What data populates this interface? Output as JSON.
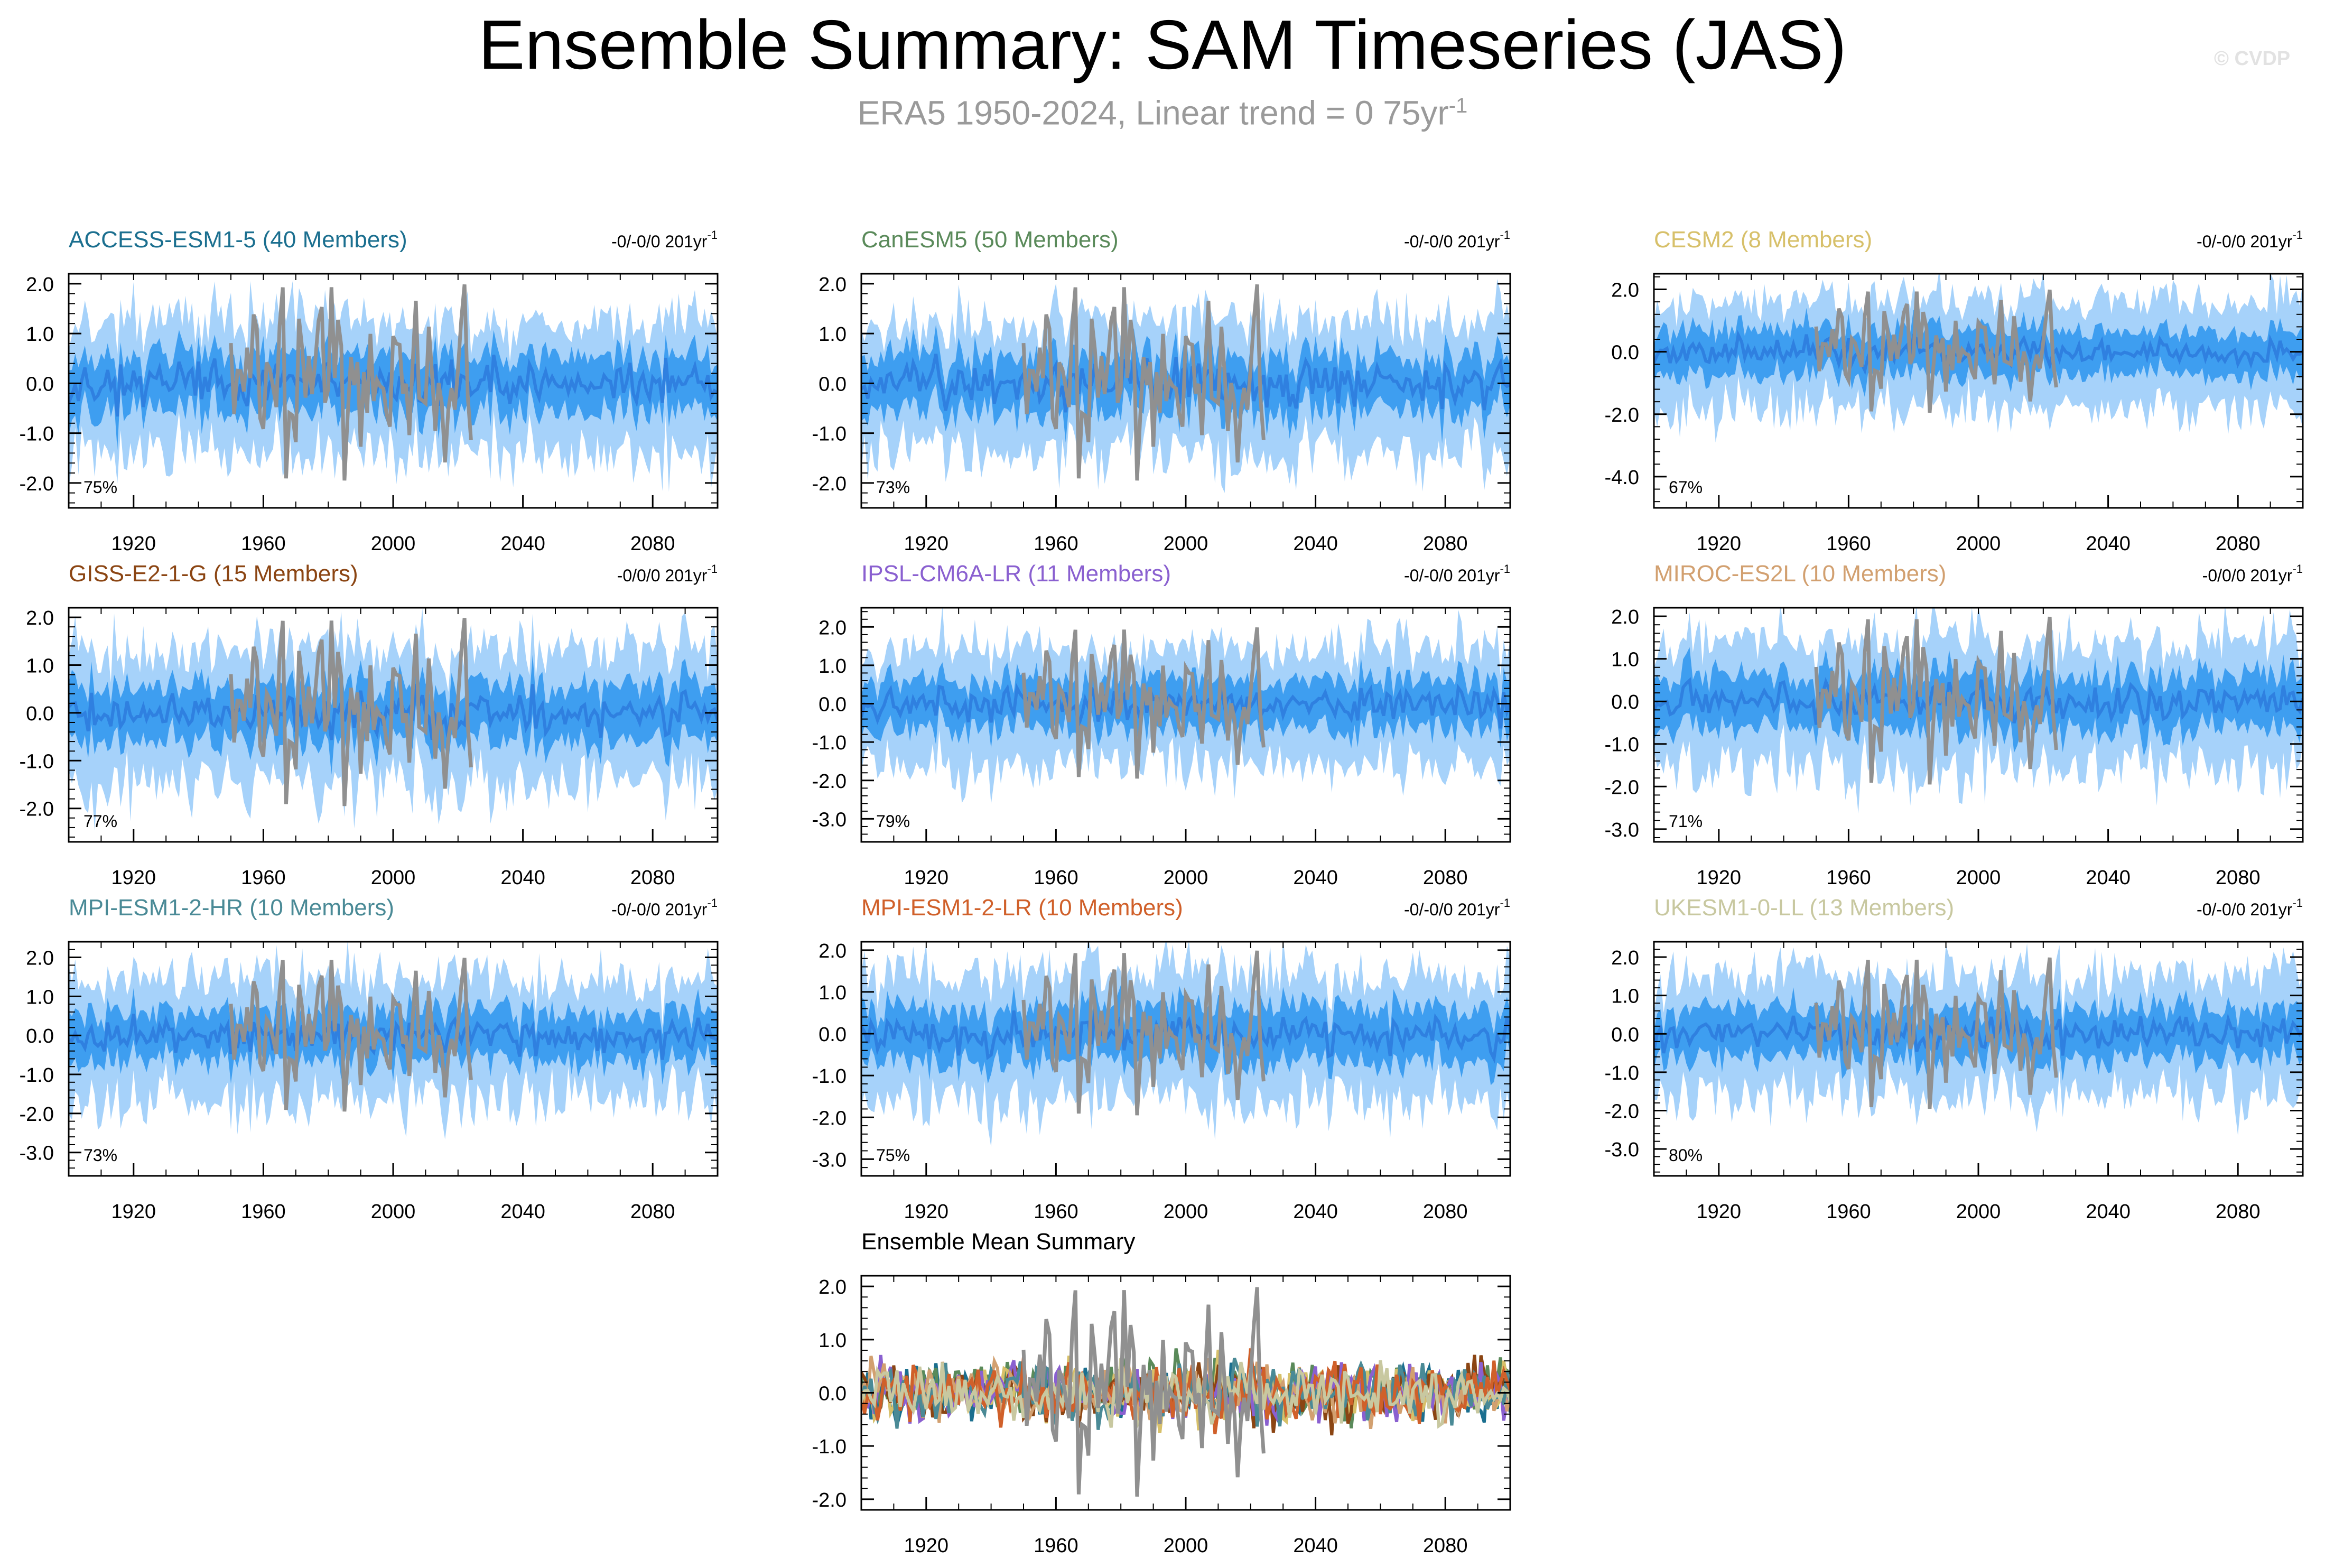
{
  "header": {
    "title": "Ensemble Summary: SAM Timeseries (JAS)",
    "subtitle_main": "ERA5 1950-2024, Linear trend = 0 75yr",
    "subtitle_sup": "-1",
    "watermark": "© CVDP"
  },
  "colors": {
    "outer_band": "#a6d2fa",
    "inner_band": "#3e9ef0",
    "ens_mean": "#2f80e0",
    "obs": "#909090",
    "axis": "#000000"
  },
  "chart_data": [
    {
      "type": "area",
      "title": "ACCESS-ESM1-5 (40 Members)",
      "title_color": "#1b6f8f",
      "trend_label": "-0/-0/0 201yr",
      "trend_sup": "-1",
      "pct_label": "75%",
      "xlim": [
        1900,
        2100
      ],
      "xticks": [
        1920,
        1960,
        2000,
        2040,
        2080
      ],
      "xtick_labels": [
        "1920",
        "1960",
        "2000",
        "2040",
        "2080"
      ],
      "ylim": [
        -2.5,
        2.2
      ],
      "yticks": [
        2.0,
        1.0,
        0.0,
        -1.0,
        -2.0
      ],
      "ytick_labels": [
        "2.0",
        "1.0",
        "0.0",
        "-1.0",
        "-2.0"
      ],
      "amp": 1.0,
      "seed": 11
    },
    {
      "type": "area",
      "title": "CanESM5 (50 Members)",
      "title_color": "#5a8a5a",
      "trend_label": "-0/-0/0 201yr",
      "trend_sup": "-1",
      "pct_label": "73%",
      "xlim": [
        1900,
        2100
      ],
      "xticks": [
        1920,
        1960,
        2000,
        2040,
        2080
      ],
      "xtick_labels": [
        "1920",
        "1960",
        "2000",
        "2040",
        "2080"
      ],
      "ylim": [
        -2.5,
        2.2
      ],
      "yticks": [
        2.0,
        1.0,
        0.0,
        -1.0,
        -2.0
      ],
      "ytick_labels": [
        "2.0",
        "1.0",
        "0.0",
        "-1.0",
        "-2.0"
      ],
      "amp": 1.0,
      "seed": 23
    },
    {
      "type": "area",
      "title": "CESM2 (8 Members)",
      "title_color": "#d7c06a",
      "trend_label": "-0/-0/0 201yr",
      "trend_sup": "-1",
      "pct_label": "67%",
      "xlim": [
        1900,
        2100
      ],
      "xticks": [
        1920,
        1960,
        2000,
        2040,
        2080
      ],
      "xtick_labels": [
        "1920",
        "1960",
        "2000",
        "2040",
        "2080"
      ],
      "ylim": [
        -5.0,
        2.5
      ],
      "yticks": [
        2.0,
        0.0,
        -2.0,
        -4.0
      ],
      "ytick_labels": [
        "2.0",
        "0.0",
        "-2.0",
        "-4.0"
      ],
      "amp": 1.3,
      "seed": 37
    },
    {
      "type": "area",
      "title": "GISS-E2-1-G (15 Members)",
      "title_color": "#8b4513",
      "trend_label": "-0/0/0 201yr",
      "trend_sup": "-1",
      "pct_label": "77%",
      "xlim": [
        1900,
        2100
      ],
      "xticks": [
        1920,
        1960,
        2000,
        2040,
        2080
      ],
      "xtick_labels": [
        "1920",
        "1960",
        "2000",
        "2040",
        "2080"
      ],
      "ylim": [
        -2.7,
        2.2
      ],
      "yticks": [
        2.0,
        1.0,
        0.0,
        -1.0,
        -2.0
      ],
      "ytick_labels": [
        "2.0",
        "1.0",
        "0.0",
        "-1.0",
        "-2.0"
      ],
      "amp": 1.05,
      "seed": 41
    },
    {
      "type": "area",
      "title": "IPSL-CM6A-LR (11 Members)",
      "title_color": "#8a60d0",
      "trend_label": "-0/-0/0 201yr",
      "trend_sup": "-1",
      "pct_label": "79%",
      "xlim": [
        1900,
        2100
      ],
      "xticks": [
        1920,
        1960,
        2000,
        2040,
        2080
      ],
      "xtick_labels": [
        "1920",
        "1960",
        "2000",
        "2040",
        "2080"
      ],
      "ylim": [
        -3.6,
        2.5
      ],
      "yticks": [
        2.0,
        1.0,
        0.0,
        -1.0,
        -2.0,
        -3.0
      ],
      "ytick_labels": [
        "2.0",
        "1.0",
        "0.0",
        "-1.0",
        "-2.0",
        "-3.0"
      ],
      "amp": 1.15,
      "seed": 53
    },
    {
      "type": "area",
      "title": "MIROC-ES2L (10 Members)",
      "title_color": "#d2a070",
      "trend_label": "-0/0/0 201yr",
      "trend_sup": "-1",
      "pct_label": "71%",
      "xlim": [
        1900,
        2100
      ],
      "xticks": [
        1920,
        1960,
        2000,
        2040,
        2080
      ],
      "xtick_labels": [
        "1920",
        "1960",
        "2000",
        "2040",
        "2080"
      ],
      "ylim": [
        -3.3,
        2.2
      ],
      "yticks": [
        2.0,
        1.0,
        0.0,
        -1.0,
        -2.0,
        -3.0
      ],
      "ytick_labels": [
        "2.0",
        "1.0",
        "0.0",
        "-1.0",
        "-2.0",
        "-3.0"
      ],
      "amp": 1.15,
      "seed": 67
    },
    {
      "type": "area",
      "title": "MPI-ESM1-2-HR (10 Members)",
      "title_color": "#4a8a96",
      "trend_label": "-0/-0/0 201yr",
      "trend_sup": "-1",
      "pct_label": "73%",
      "xlim": [
        1900,
        2100
      ],
      "xticks": [
        1920,
        1960,
        2000,
        2040,
        2080
      ],
      "xtick_labels": [
        "1920",
        "1960",
        "2000",
        "2040",
        "2080"
      ],
      "ylim": [
        -3.6,
        2.4
      ],
      "yticks": [
        2.0,
        1.0,
        0.0,
        -1.0,
        -2.0,
        -3.0
      ],
      "ytick_labels": [
        "2.0",
        "1.0",
        "0.0",
        "-1.0",
        "-2.0",
        "-3.0"
      ],
      "amp": 1.15,
      "seed": 71
    },
    {
      "type": "area",
      "title": "MPI-ESM1-2-LR (10 Members)",
      "title_color": "#d0602a",
      "trend_label": "-0/-0/0 201yr",
      "trend_sup": "-1",
      "pct_label": "75%",
      "xlim": [
        1900,
        2100
      ],
      "xticks": [
        1920,
        1960,
        2000,
        2040,
        2080
      ],
      "xtick_labels": [
        "1920",
        "1960",
        "2000",
        "2040",
        "2080"
      ],
      "ylim": [
        -3.4,
        2.2
      ],
      "yticks": [
        2.0,
        1.0,
        0.0,
        -1.0,
        -2.0,
        -3.0
      ],
      "ytick_labels": [
        "2.0",
        "1.0",
        "0.0",
        "-1.0",
        "-2.0",
        "-3.0"
      ],
      "amp": 1.15,
      "seed": 83
    },
    {
      "type": "area",
      "title": "UKESM1-0-LL (13 Members)",
      "title_color": "#c8c8a0",
      "trend_label": "-0/-0/0 201yr",
      "trend_sup": "-1",
      "pct_label": "80%",
      "xlim": [
        1900,
        2100
      ],
      "xticks": [
        1920,
        1960,
        2000,
        2040,
        2080
      ],
      "xtick_labels": [
        "1920",
        "1960",
        "2000",
        "2040",
        "2080"
      ],
      "ylim": [
        -3.7,
        2.4
      ],
      "yticks": [
        2.0,
        1.0,
        0.0,
        -1.0,
        -2.0,
        -3.0
      ],
      "ytick_labels": [
        "2.0",
        "1.0",
        "0.0",
        "-1.0",
        "-2.0",
        "-3.0"
      ],
      "amp": 1.15,
      "seed": 97
    },
    {
      "type": "line",
      "title": "Ensemble Mean Summary",
      "title_color": "#000000",
      "xlim": [
        1900,
        2100
      ],
      "xticks": [
        1920,
        1960,
        2000,
        2040,
        2080
      ],
      "xtick_labels": [
        "1920",
        "1960",
        "2000",
        "2040",
        "2080"
      ],
      "ylim": [
        -2.2,
        2.2
      ],
      "yticks": [
        2.0,
        1.0,
        0.0,
        -1.0,
        -2.0
      ],
      "ytick_labels": [
        "2.0",
        "1.0",
        "0.0",
        "-1.0",
        "-2.0"
      ],
      "series_colors": [
        "#1b6f8f",
        "#5a8a5a",
        "#d7c06a",
        "#8b4513",
        "#8a60d0",
        "#d2a070",
        "#4a8a96",
        "#d0602a",
        "#c8c8a0"
      ],
      "seed": 101
    }
  ]
}
